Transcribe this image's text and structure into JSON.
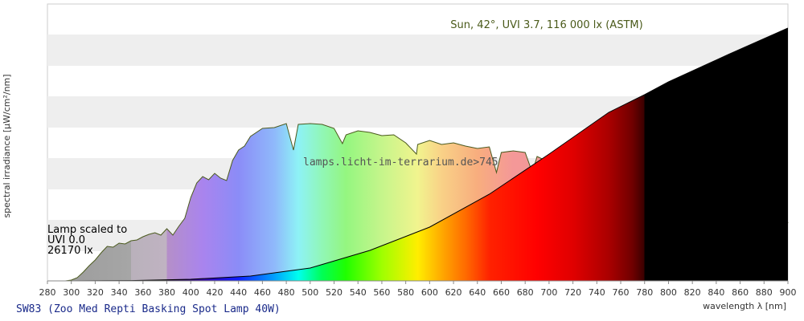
{
  "title": "SW83 (Zoo Med Repti Basking Spot Lamp 40W)",
  "watermark": "lamps.licht-im-terrarium.de>745",
  "sun_label": "Sun, 42°, UVI 3.7, 116 000 lx (ASTM)",
  "lamp_note": {
    "line1": "Lamp scaled to",
    "line2": "UVI 0.0",
    "line3": "26170 lx"
  },
  "colors": {
    "sun_outline": "#4b5a1e",
    "lamp_outline": "#000000",
    "band_stripe": "#eeeeee"
  },
  "chart_data": {
    "type": "area",
    "xlabel": "wavelength λ [nm]",
    "ylabel": "spectral irradiance [µW/cm²/nm]",
    "xlim": [
      280,
      900
    ],
    "x_ticks": [
      280,
      300,
      320,
      340,
      360,
      380,
      400,
      420,
      440,
      460,
      480,
      500,
      520,
      540,
      560,
      580,
      600,
      620,
      640,
      660,
      680,
      700,
      720,
      740,
      760,
      780,
      800,
      820,
      840,
      860,
      880,
      900
    ],
    "y_ticks_shown": false,
    "grid": "horizontal bands",
    "series": [
      {
        "name": "Sun, 42°, UVI 3.7, 116 000 lx (ASTM)",
        "x": [
          280,
          295,
          300,
          305,
          310,
          315,
          320,
          325,
          330,
          335,
          340,
          345,
          350,
          355,
          360,
          365,
          370,
          375,
          380,
          385,
          390,
          395,
          400,
          405,
          410,
          415,
          420,
          425,
          430,
          435,
          440,
          445,
          450,
          460,
          470,
          480,
          486,
          490,
          500,
          510,
          520,
          527,
          530,
          540,
          550,
          560,
          570,
          580,
          589,
          590,
          600,
          610,
          620,
          630,
          640,
          650,
          656,
          660,
          670,
          680,
          686,
          690,
          700,
          710,
          718,
          720,
          730,
          740,
          750,
          760,
          762,
          765,
          770,
          780,
          790,
          800,
          810,
          820,
          830,
          840,
          850,
          860,
          870,
          880,
          890,
          895,
          900
        ],
        "y": [
          0,
          0,
          1,
          4,
          11,
          19,
          26,
          35,
          43,
          42,
          47,
          46,
          50,
          51,
          55,
          58,
          60,
          57,
          65,
          57,
          68,
          78,
          104,
          122,
          130,
          126,
          134,
          128,
          125,
          150,
          163,
          168,
          180,
          190,
          191,
          196,
          163,
          195,
          196,
          195,
          190,
          171,
          182,
          187,
          185,
          181,
          182,
          172,
          158,
          170,
          175,
          170,
          172,
          168,
          165,
          167,
          135,
          160,
          162,
          160,
          135,
          155,
          148,
          118,
          125,
          110,
          145,
          130,
          135,
          120,
          70,
          35,
          90,
          124,
          123,
          121,
          119,
          115,
          112,
          109,
          108,
          107,
          105,
          104,
          102,
          95,
          72
        ]
      },
      {
        "name": "SW83 (Zoo Med Repti Basking Spot Lamp 40W)",
        "x": [
          300,
          350,
          400,
          450,
          500,
          550,
          600,
          650,
          700,
          750,
          780,
          800,
          850,
          900
        ],
        "y": [
          0,
          0.4,
          2,
          6,
          16,
          38,
          67,
          108,
          158,
          210,
          232,
          248,
          282,
          315
        ]
      }
    ]
  }
}
